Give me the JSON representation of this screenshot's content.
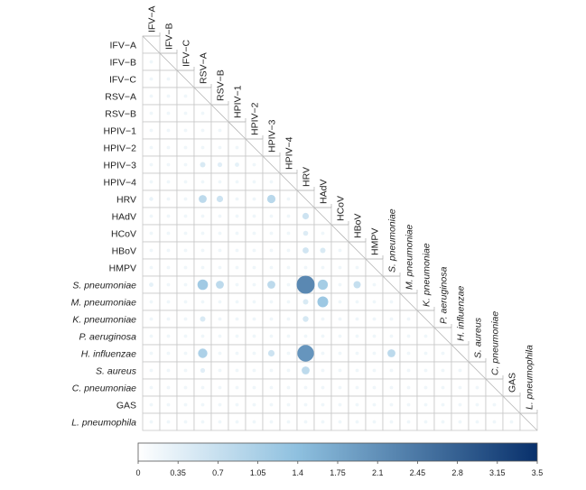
{
  "chart_data": {
    "type": "heatmap",
    "title": "",
    "subtype": "lower-triangular correlation matrix (bubble)",
    "labels": [
      {
        "name": "IFV−A",
        "italic": false
      },
      {
        "name": "IFV−B",
        "italic": false
      },
      {
        "name": "IFV−C",
        "italic": false
      },
      {
        "name": "RSV−A",
        "italic": false
      },
      {
        "name": "RSV−B",
        "italic": false
      },
      {
        "name": "HPIV−1",
        "italic": false
      },
      {
        "name": "HPIV−2",
        "italic": false
      },
      {
        "name": "HPIV−3",
        "italic": false
      },
      {
        "name": "HPIV−4",
        "italic": false
      },
      {
        "name": "HRV",
        "italic": false
      },
      {
        "name": "HAdV",
        "italic": false
      },
      {
        "name": "HCoV",
        "italic": false
      },
      {
        "name": "HBoV",
        "italic": false
      },
      {
        "name": "HMPV",
        "italic": false
      },
      {
        "name": "S. pneumoniae",
        "italic": true
      },
      {
        "name": "M. pneumoniae",
        "italic": true
      },
      {
        "name": "K. pneumoniae",
        "italic": true
      },
      {
        "name": "P. aeruginosa",
        "italic": true
      },
      {
        "name": "H. influenzae",
        "italic": true
      },
      {
        "name": "S. aureus",
        "italic": true
      },
      {
        "name": "C. pneumoniae",
        "italic": true
      },
      {
        "name": "GAS",
        "italic": false
      },
      {
        "name": "L. pneumophila",
        "italic": true
      }
    ],
    "cells": [
      {
        "row": 9,
        "col": 0,
        "value": 0.15
      },
      {
        "row": 9,
        "col": 3,
        "value": 0.7
      },
      {
        "row": 9,
        "col": 4,
        "value": 0.5
      },
      {
        "row": 9,
        "col": 7,
        "value": 0.75
      },
      {
        "row": 10,
        "col": 9,
        "value": 0.5
      },
      {
        "row": 7,
        "col": 3,
        "value": 0.35
      },
      {
        "row": 7,
        "col": 4,
        "value": 0.25
      },
      {
        "row": 7,
        "col": 5,
        "value": 0.2
      },
      {
        "row": 11,
        "col": 9,
        "value": 0.3
      },
      {
        "row": 12,
        "col": 9,
        "value": 0.45
      },
      {
        "row": 12,
        "col": 10,
        "value": 0.35
      },
      {
        "row": 14,
        "col": 0,
        "value": 0.2
      },
      {
        "row": 14,
        "col": 3,
        "value": 1.05
      },
      {
        "row": 14,
        "col": 4,
        "value": 0.7
      },
      {
        "row": 14,
        "col": 7,
        "value": 0.7
      },
      {
        "row": 14,
        "col": 9,
        "value": 2.1
      },
      {
        "row": 14,
        "col": 10,
        "value": 1.0
      },
      {
        "row": 14,
        "col": 12,
        "value": 0.6
      },
      {
        "row": 15,
        "col": 9,
        "value": 0.35
      },
      {
        "row": 15,
        "col": 10,
        "value": 1.1
      },
      {
        "row": 16,
        "col": 3,
        "value": 0.35
      },
      {
        "row": 16,
        "col": 9,
        "value": 0.4
      },
      {
        "row": 18,
        "col": 3,
        "value": 0.9
      },
      {
        "row": 18,
        "col": 7,
        "value": 0.5
      },
      {
        "row": 18,
        "col": 9,
        "value": 1.9
      },
      {
        "row": 18,
        "col": 14,
        "value": 0.7
      },
      {
        "row": 19,
        "col": 3,
        "value": 0.25
      },
      {
        "row": 19,
        "col": 9,
        "value": 0.7
      }
    ],
    "default_value": 0.08,
    "colorbar": {
      "min": 0,
      "max": 3.5,
      "ticks": [
        "0",
        "0.35",
        "0.7",
        "1.05",
        "1.4",
        "1.75",
        "2.1",
        "2.45",
        "2.8",
        "3.15",
        "3.5"
      ],
      "color_low": "#ffffff",
      "color_mid": "#8ec0df",
      "color_high": "#08306b"
    },
    "grid_color": "#c8c8c8"
  }
}
